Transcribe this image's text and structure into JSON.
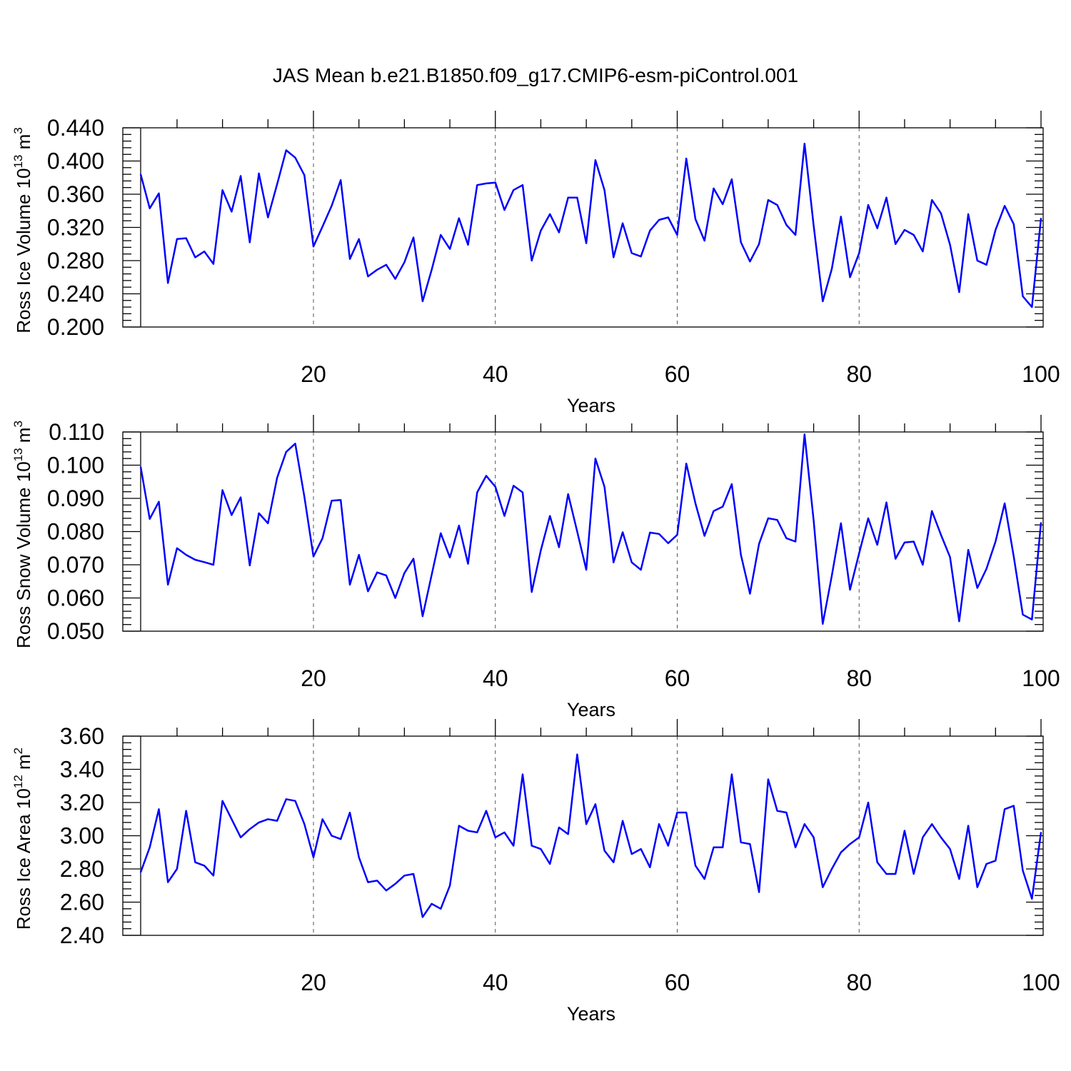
{
  "title": "JAS Mean b.e21.B1850.f09_g17.CMIP6-esm-piControl.001",
  "colors": {
    "line": "#0000ff",
    "axis": "#000000",
    "grid": "#555555"
  },
  "chart_data": [
    {
      "type": "line",
      "xlabel": "Years",
      "ylabel": "Ross Ice Volume 10",
      "ylabel_exp": "13",
      "ylabel_unit": " m",
      "ylabel_unit_exp": "3",
      "xlim": [
        1,
        100
      ],
      "ylim": [
        0.2,
        0.44
      ],
      "xticks": [
        20,
        40,
        60,
        80,
        100
      ],
      "yticks": [
        "0.200",
        "0.240",
        "0.280",
        "0.320",
        "0.360",
        "0.400",
        "0.440"
      ],
      "grid": "dashed vertical at x ticks",
      "series": [
        {
          "x": [
            1,
            2,
            3,
            4,
            5,
            6,
            7,
            8,
            9,
            10,
            11,
            12,
            13,
            14,
            15,
            16,
            17,
            18,
            19,
            20,
            21,
            22,
            23,
            24,
            25,
            26,
            27,
            28,
            29,
            30,
            31,
            32,
            33,
            34,
            35,
            36,
            37,
            38,
            39,
            40,
            41,
            42,
            43,
            44,
            45,
            46,
            47,
            48,
            49,
            50,
            51,
            52,
            53,
            54,
            55,
            56,
            57,
            58,
            59,
            60,
            61,
            62,
            63,
            64,
            65,
            66,
            67,
            68,
            69,
            70,
            71,
            72,
            73,
            74,
            75,
            76,
            77,
            78,
            79,
            80,
            81,
            82,
            83,
            84,
            85,
            86,
            87,
            88,
            89,
            90,
            91,
            92,
            93,
            94,
            95,
            96,
            97,
            98,
            99,
            100
          ],
          "values": [
            0.384,
            0.343,
            0.361,
            0.253,
            0.306,
            0.307,
            0.284,
            0.291,
            0.276,
            0.365,
            0.339,
            0.382,
            0.302,
            0.385,
            0.332,
            0.372,
            0.413,
            0.404,
            0.383,
            0.297,
            0.321,
            0.346,
            0.377,
            0.282,
            0.306,
            0.261,
            0.269,
            0.275,
            0.258,
            0.278,
            0.308,
            0.231,
            0.269,
            0.311,
            0.294,
            0.331,
            0.299,
            0.371,
            0.373,
            0.374,
            0.341,
            0.365,
            0.371,
            0.28,
            0.316,
            0.336,
            0.314,
            0.356,
            0.356,
            0.301,
            0.401,
            0.365,
            0.284,
            0.325,
            0.289,
            0.285,
            0.316,
            0.329,
            0.332,
            0.311,
            0.403,
            0.33,
            0.304,
            0.367,
            0.348,
            0.378,
            0.302,
            0.279,
            0.3,
            0.353,
            0.347,
            0.323,
            0.311,
            0.421,
            0.322,
            0.231,
            0.27,
            0.333,
            0.26,
            0.289,
            0.347,
            0.319,
            0.356,
            0.3,
            0.317,
            0.311,
            0.291,
            0.353,
            0.337,
            0.299,
            0.242,
            0.336,
            0.28,
            0.275,
            0.317,
            0.346,
            0.324,
            0.237,
            0.224,
            0.331
          ]
        }
      ]
    },
    {
      "type": "line",
      "xlabel": "Years",
      "ylabel": "Ross Snow Volume 10",
      "ylabel_exp": "13",
      "ylabel_unit": " m",
      "ylabel_unit_exp": "3",
      "xlim": [
        1,
        100
      ],
      "ylim": [
        0.05,
        0.11
      ],
      "xticks": [
        20,
        40,
        60,
        80,
        100
      ],
      "yticks": [
        "0.050",
        "0.060",
        "0.070",
        "0.080",
        "0.090",
        "0.100",
        "0.110"
      ],
      "grid": "dashed vertical at x ticks",
      "series": [
        {
          "x": [
            1,
            2,
            3,
            4,
            5,
            6,
            7,
            8,
            9,
            10,
            11,
            12,
            13,
            14,
            15,
            16,
            17,
            18,
            19,
            20,
            21,
            22,
            23,
            24,
            25,
            26,
            27,
            28,
            29,
            30,
            31,
            32,
            33,
            34,
            35,
            36,
            37,
            38,
            39,
            40,
            41,
            42,
            43,
            44,
            45,
            46,
            47,
            48,
            49,
            50,
            51,
            52,
            53,
            54,
            55,
            56,
            57,
            58,
            59,
            60,
            61,
            62,
            63,
            64,
            65,
            66,
            67,
            68,
            69,
            70,
            71,
            72,
            73,
            74,
            75,
            76,
            77,
            78,
            79,
            80,
            81,
            82,
            83,
            84,
            85,
            86,
            87,
            88,
            89,
            90,
            91,
            92,
            93,
            94,
            95,
            96,
            97,
            98,
            99,
            100
          ],
          "values": [
            0.0995,
            0.0838,
            0.089,
            0.064,
            0.075,
            0.073,
            0.0715,
            0.0708,
            0.07,
            0.0925,
            0.085,
            0.0903,
            0.0698,
            0.0855,
            0.0825,
            0.0962,
            0.104,
            0.1065,
            0.0905,
            0.0725,
            0.078,
            0.0893,
            0.0895,
            0.064,
            0.073,
            0.062,
            0.0677,
            0.0668,
            0.06,
            0.0675,
            0.0718,
            0.0545,
            0.067,
            0.0795,
            0.0722,
            0.0818,
            0.0703,
            0.0918,
            0.0968,
            0.0935,
            0.0847,
            0.0938,
            0.0918,
            0.0618,
            0.0743,
            0.0847,
            0.0753,
            0.0913,
            0.08,
            0.0685,
            0.102,
            0.0935,
            0.0707,
            0.0798,
            0.0707,
            0.0685,
            0.0797,
            0.0793,
            0.0765,
            0.079,
            0.1005,
            0.0885,
            0.0787,
            0.0862,
            0.0875,
            0.0943,
            0.073,
            0.0613,
            0.0763,
            0.084,
            0.0835,
            0.078,
            0.077,
            0.1093,
            0.0833,
            0.0522,
            0.0667,
            0.0825,
            0.0625,
            0.0735,
            0.084,
            0.076,
            0.0888,
            0.0718,
            0.0767,
            0.077,
            0.07,
            0.0862,
            0.079,
            0.0723,
            0.053,
            0.0745,
            0.063,
            0.0688,
            0.077,
            0.0885,
            0.0725,
            0.055,
            0.0535,
            0.0827
          ]
        }
      ]
    },
    {
      "type": "line",
      "xlabel": "Years",
      "ylabel": "Ross Ice Area 10",
      "ylabel_exp": "12",
      "ylabel_unit": " m",
      "ylabel_unit_exp": "2",
      "xlim": [
        1,
        100
      ],
      "ylim": [
        2.4,
        3.6
      ],
      "xticks": [
        20,
        40,
        60,
        80,
        100
      ],
      "yticks": [
        "2.40",
        "2.60",
        "2.80",
        "3.00",
        "3.20",
        "3.40",
        "3.60"
      ],
      "grid": "dashed vertical at x ticks",
      "series": [
        {
          "x": [
            1,
            2,
            3,
            4,
            5,
            6,
            7,
            8,
            9,
            10,
            11,
            12,
            13,
            14,
            15,
            16,
            17,
            18,
            19,
            20,
            21,
            22,
            23,
            24,
            25,
            26,
            27,
            28,
            29,
            30,
            31,
            32,
            33,
            34,
            35,
            36,
            37,
            38,
            39,
            40,
            41,
            42,
            43,
            44,
            45,
            46,
            47,
            48,
            49,
            50,
            51,
            52,
            53,
            54,
            55,
            56,
            57,
            58,
            59,
            60,
            61,
            62,
            63,
            64,
            65,
            66,
            67,
            68,
            69,
            70,
            71,
            72,
            73,
            74,
            75,
            76,
            77,
            78,
            79,
            80,
            81,
            82,
            83,
            84,
            85,
            86,
            87,
            88,
            89,
            90,
            91,
            92,
            93,
            94,
            95,
            96,
            97,
            98,
            99,
            100
          ],
          "values": [
            2.78,
            2.93,
            3.16,
            2.72,
            2.8,
            3.15,
            2.84,
            2.82,
            2.76,
            3.21,
            3.1,
            2.99,
            3.04,
            3.08,
            3.1,
            3.09,
            3.22,
            3.21,
            3.07,
            2.87,
            3.1,
            3.0,
            2.98,
            3.14,
            2.87,
            2.72,
            2.73,
            2.67,
            2.71,
            2.76,
            2.77,
            2.51,
            2.59,
            2.56,
            2.7,
            3.06,
            3.03,
            3.02,
            3.15,
            2.99,
            3.02,
            2.94,
            3.37,
            2.94,
            2.92,
            2.83,
            3.05,
            3.01,
            3.49,
            3.07,
            3.19,
            2.91,
            2.84,
            3.09,
            2.89,
            2.92,
            2.81,
            3.07,
            2.94,
            3.14,
            3.14,
            2.82,
            2.74,
            2.93,
            2.93,
            3.37,
            2.96,
            2.95,
            2.66,
            3.34,
            3.15,
            3.14,
            2.93,
            3.07,
            2.99,
            2.69,
            2.8,
            2.9,
            2.95,
            2.99,
            3.2,
            2.84,
            2.77,
            2.77,
            3.03,
            2.77,
            2.99,
            3.07,
            2.99,
            2.92,
            2.74,
            3.06,
            2.69,
            2.83,
            2.85,
            3.16,
            3.18,
            2.79,
            2.62,
            3.02
          ]
        }
      ]
    }
  ]
}
